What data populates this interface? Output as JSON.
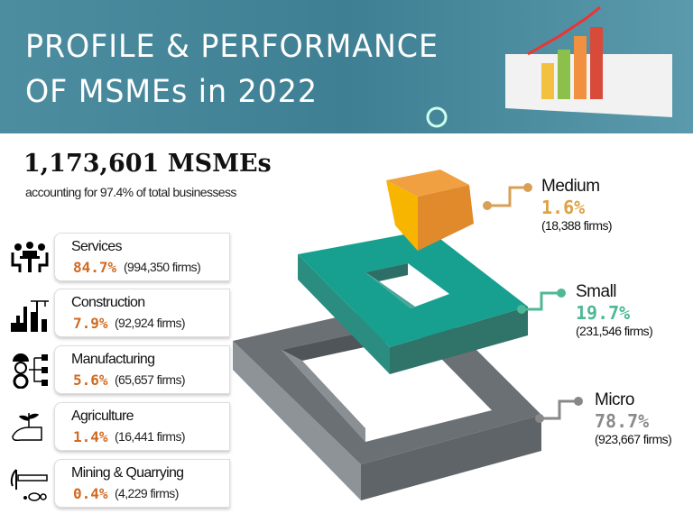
{
  "header": {
    "title_line1": "PROFILE & PERFORMANCE",
    "title_line2": "OF MSMEs in 2022"
  },
  "summary": {
    "count": "1,173,601 MSMEs",
    "subtitle": "accounting for 97.4% of total businessess"
  },
  "sectors": [
    {
      "name": "Services",
      "pct": "84.7%",
      "firms": "(994,350 firms)",
      "icon": "meeting-icon"
    },
    {
      "name": "Construction",
      "pct": "7.9%",
      "firms": "(92,924 firms)",
      "icon": "construction-icon"
    },
    {
      "name": "Manufacturing",
      "pct": "5.6%",
      "firms": "(65,657 firms)",
      "icon": "factory-worker-icon"
    },
    {
      "name": "Agriculture",
      "pct": "1.4%",
      "firms": "(16,441 firms)",
      "icon": "plant-hand-icon"
    },
    {
      "name": "Mining & Quarrying",
      "pct": "0.4%",
      "firms": "(4,229 firms)",
      "icon": "pickaxe-icon"
    }
  ],
  "sizes": [
    {
      "name": "Medium",
      "pct": "1.6%",
      "firms": "(18,388 firms)",
      "color": "#e0a040"
    },
    {
      "name": "Small",
      "pct": "19.7%",
      "firms": "(231,546 firms)",
      "color": "#4fb894"
    },
    {
      "name": "Micro",
      "pct": "78.7%",
      "firms": "(923,667 firms)",
      "color": "#8a8a8a"
    }
  ],
  "colors": {
    "banner": "#4a8a9d",
    "sector_pct": "#d06a22",
    "medium": "#f0a020",
    "small": "#1aa08e",
    "micro": "#6b7075"
  }
}
